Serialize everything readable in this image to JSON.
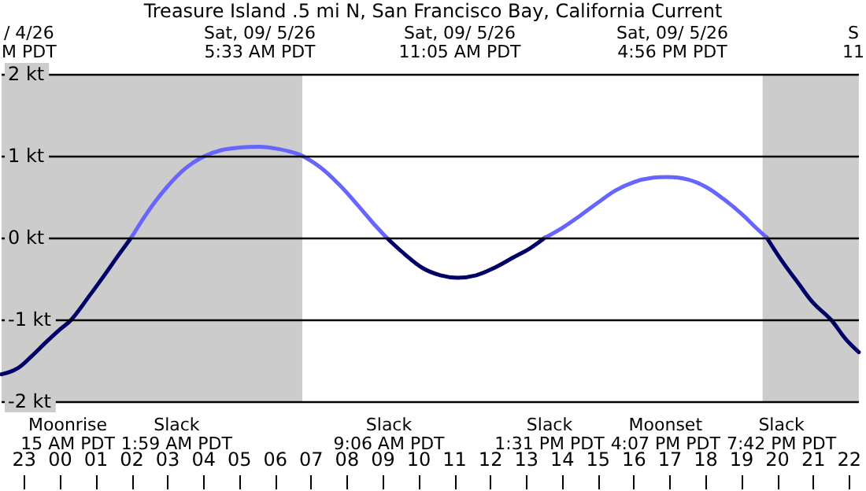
{
  "chart_data": {
    "type": "line",
    "title": "Treasure Island .5 mi N, San Francisco Bay, California Current",
    "series": [
      {
        "color": "#000066",
        "x": [
          "--09-04T22:22",
          "--09-04T22:48",
          "--09-04T23:12",
          "--09-04T23:36",
          "--09-05T00:00",
          "--09-05T00:19",
          "--09-05T00:48",
          "--09-05T01:12",
          "--09-05T01:36",
          "--09-05T01:59",
          "--09-05T05:30",
          "--09-05T09:06",
          "--09-05T09:36",
          "--09-05T10:06",
          "--09-05T10:36",
          "--09-05T11:05",
          "--09-05T11:36",
          "--09-05T12:06",
          "--09-05T12:36",
          "--09-05T13:06",
          "--09-05T13:31",
          "--09-05T16:30",
          "--09-05T19:42",
          "--09-05T20:06",
          "--09-05T20:36",
          "--09-05T21:00",
          "--09-05T21:29",
          "--09-05T21:54",
          "--09-05T22:16"
        ],
        "values": [
          -1.67,
          -1.6,
          -1.45,
          -1.28,
          -1.12,
          -1.0,
          -0.72,
          -0.48,
          -0.23,
          0,
          null,
          0,
          -0.2,
          -0.37,
          -0.46,
          -0.49,
          -0.46,
          -0.37,
          -0.25,
          -0.13,
          0,
          null,
          0,
          -0.27,
          -0.57,
          -0.8,
          -1.0,
          -1.24,
          -1.4
        ]
      },
      {
        "color": "#6666ff",
        "x": [
          "--09-05T01:59",
          "--09-05T02:30",
          "--09-05T03:00",
          "--09-05T03:30",
          "--09-05T04:00",
          "--09-05T04:30",
          "--09-05T05:00",
          "--09-05T05:33",
          "--09-05T06:00",
          "--09-05T06:30",
          "--09-05T06:45",
          "--09-05T07:15",
          "--09-05T07:45",
          "--09-05T08:15",
          "--09-05T08:42",
          "--09-05T09:06",
          "--09-05T11:18",
          "--09-05T13:31",
          "--09-05T14:00",
          "--09-05T14:30",
          "--09-05T15:00",
          "--09-05T15:30",
          "--09-05T16:00",
          "--09-05T16:30",
          "--09-05T16:56",
          "--09-05T17:30",
          "--09-05T18:00",
          "--09-05T18:30",
          "--09-05T19:00",
          "--09-05T19:24",
          "--09-05T19:42"
        ],
        "values": [
          0,
          0.35,
          0.63,
          0.85,
          0.99,
          1.07,
          1.1,
          1.11,
          1.09,
          1.04,
          1.0,
          0.86,
          0.66,
          0.42,
          0.19,
          0,
          null,
          0,
          0.12,
          0.27,
          0.43,
          0.58,
          0.68,
          0.73,
          0.74,
          0.71,
          0.62,
          0.47,
          0.29,
          0.12,
          0
        ]
      }
    ],
    "xlim": [
      "--09-04T22:22",
      "--09-05T22:16"
    ],
    "xticks": [
      {
        "value": "--09-04T23:00",
        "label": "23"
      },
      {
        "value": "--09-05T00:00",
        "label": "00"
      },
      {
        "value": "--09-05T01:00",
        "label": "01"
      },
      {
        "value": "--09-05T02:00",
        "label": "02"
      },
      {
        "value": "--09-05T03:00",
        "label": "03"
      },
      {
        "value": "--09-05T04:00",
        "label": "04"
      },
      {
        "value": "--09-05T05:00",
        "label": "05"
      },
      {
        "value": "--09-05T06:00",
        "label": "06"
      },
      {
        "value": "--09-05T07:00",
        "label": "07"
      },
      {
        "value": "--09-05T08:00",
        "label": "08"
      },
      {
        "value": "--09-05T09:00",
        "label": "09"
      },
      {
        "value": "--09-05T10:00",
        "label": "10"
      },
      {
        "value": "--09-05T11:00",
        "label": "11"
      },
      {
        "value": "--09-05T12:00",
        "label": "12"
      },
      {
        "value": "--09-05T13:00",
        "label": "13"
      },
      {
        "value": "--09-05T14:00",
        "label": "14"
      },
      {
        "value": "--09-05T15:00",
        "label": "15"
      },
      {
        "value": "--09-05T16:00",
        "label": "16"
      },
      {
        "value": "--09-05T17:00",
        "label": "17"
      },
      {
        "value": "--09-05T18:00",
        "label": "18"
      },
      {
        "value": "--09-05T19:00",
        "label": "19"
      },
      {
        "value": "--09-05T20:00",
        "label": "20"
      },
      {
        "value": "--09-05T21:00",
        "label": "21"
      },
      {
        "value": "--09-05T22:00",
        "label": "22"
      }
    ],
    "ylim": [
      -2,
      2
    ],
    "yticks": [
      {
        "value": -2,
        "label": "-2 kt"
      },
      {
        "value": -1,
        "label": "-1 kt"
      },
      {
        "value": 0,
        "label": "0 kt"
      },
      {
        "value": 1,
        "label": "1 kt"
      },
      {
        "value": 2,
        "label": "2 kt"
      }
    ],
    "grid": "y",
    "bands": [
      {
        "axis": "x",
        "from": "--09-04T22:22",
        "to": "--09-05T06:45",
        "color": "#cccccc"
      },
      {
        "axis": "x",
        "from": "--09-05T19:35",
        "to": "--09-05T22:16",
        "color": "#cccccc"
      }
    ],
    "annotations": [
      "/ 4/26\nM PDT",
      "Sat, 09/ 5/26\n5:33 AM PDT",
      "Sat, 09/ 5/26\n11:05 AM PDT",
      "Sat, 09/ 5/26\n4:56 PM PDT",
      "S\n11",
      "Moonrise\n15 AM PDT",
      "Slack\n1:59 AM PDT",
      "Slack\n9:06 AM PDT",
      "Slack\n1:31 PM PDT",
      "Moonset\n4:07 PM PDT",
      "Slack\n7:42 PM PDT"
    ]
  }
}
